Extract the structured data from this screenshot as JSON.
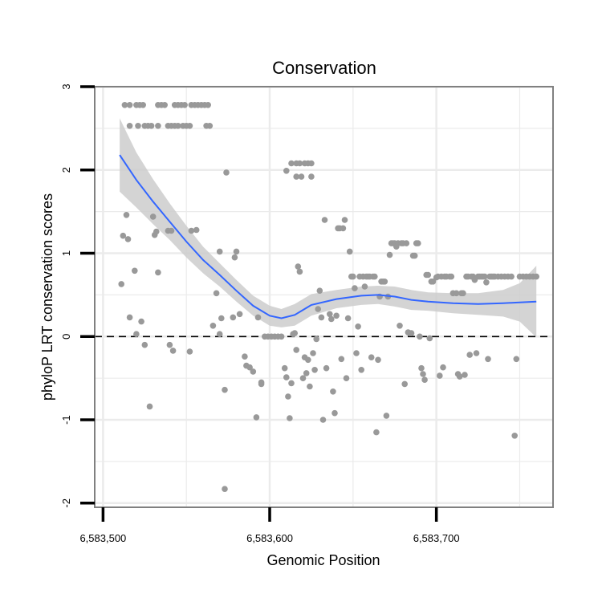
{
  "chart_data": {
    "type": "scatter",
    "title": "Conservation",
    "xlabel": "Genomic Position",
    "ylabel": "phyloP LRT conservation scores",
    "xlim": [
      6583495,
      6583770
    ],
    "ylim": [
      -2.05,
      3.0
    ],
    "x_ticks": [
      6583500,
      6583600,
      6583700
    ],
    "x_tick_labels": [
      "6,583,500",
      "6,583,600",
      "6,583,700"
    ],
    "y_ticks": [
      -2,
      -1,
      0,
      1,
      2,
      3
    ],
    "y_tick_labels": [
      "-2",
      "-1",
      "0",
      "1",
      "2",
      "3"
    ],
    "x_minor_ticks": [
      6583550,
      6583650,
      6583750
    ],
    "y_minor_ticks": [
      -1.5,
      -0.5,
      0.5,
      1.5,
      2.5
    ],
    "grid": true,
    "reference_line": {
      "y": 0,
      "style": "dashed"
    },
    "colors": {
      "points": "#999999",
      "smooth": "#3366FF",
      "band": "#cccccc",
      "panel_border": "#808080",
      "grid": "#ebebeb"
    },
    "series": [
      {
        "kind": "points",
        "points": [
          [
            6583513,
            2.78
          ],
          [
            6583516,
            2.78
          ],
          [
            6583520,
            2.78
          ],
          [
            6583522,
            2.78
          ],
          [
            6583524,
            2.78
          ],
          [
            6583533,
            2.78
          ],
          [
            6583535,
            2.78
          ],
          [
            6583537,
            2.78
          ],
          [
            6583543,
            2.78
          ],
          [
            6583545,
            2.78
          ],
          [
            6583547,
            2.78
          ],
          [
            6583549,
            2.78
          ],
          [
            6583553,
            2.78
          ],
          [
            6583555,
            2.78
          ],
          [
            6583557,
            2.78
          ],
          [
            6583559,
            2.78
          ],
          [
            6583561,
            2.78
          ],
          [
            6583563,
            2.78
          ],
          [
            6583516,
            2.53
          ],
          [
            6583521,
            2.53
          ],
          [
            6583525,
            2.53
          ],
          [
            6583527,
            2.53
          ],
          [
            6583529,
            2.53
          ],
          [
            6583533,
            2.53
          ],
          [
            6583539,
            2.53
          ],
          [
            6583541,
            2.53
          ],
          [
            6583543,
            2.53
          ],
          [
            6583545,
            2.53
          ],
          [
            6583548,
            2.53
          ],
          [
            6583550,
            2.53
          ],
          [
            6583552,
            2.53
          ],
          [
            6583562,
            2.53
          ],
          [
            6583564,
            2.53
          ],
          [
            6583574,
            1.97
          ],
          [
            6583610,
            1.99
          ],
          [
            6583613,
            2.08
          ],
          [
            6583616,
            2.08
          ],
          [
            6583618,
            2.08
          ],
          [
            6583621,
            2.08
          ],
          [
            6583623,
            2.08
          ],
          [
            6583625,
            2.08
          ],
          [
            6583616,
            1.92
          ],
          [
            6583619,
            1.92
          ],
          [
            6583625,
            1.92
          ],
          [
            6583512,
            1.21
          ],
          [
            6583514,
            1.46
          ],
          [
            6583515,
            1.17
          ],
          [
            6583530,
            1.44
          ],
          [
            6583531,
            1.22
          ],
          [
            6583532,
            1.26
          ],
          [
            6583539,
            1.27
          ],
          [
            6583541,
            1.27
          ],
          [
            6583553,
            1.27
          ],
          [
            6583556,
            1.28
          ],
          [
            6583570,
            1.02
          ],
          [
            6583579,
            0.95
          ],
          [
            6583580,
            1.02
          ],
          [
            6583511,
            0.63
          ],
          [
            6583516,
            0.23
          ],
          [
            6583519,
            0.79
          ],
          [
            6583520,
            0.03
          ],
          [
            6583523,
            0.18
          ],
          [
            6583525,
            -0.1
          ],
          [
            6583528,
            -0.84
          ],
          [
            6583533,
            0.77
          ],
          [
            6583540,
            -0.1
          ],
          [
            6583542,
            -0.17
          ],
          [
            6583552,
            -0.18
          ],
          [
            6583566,
            0.13
          ],
          [
            6583568,
            0.52
          ],
          [
            6583570,
            0.03
          ],
          [
            6583571,
            0.22
          ],
          [
            6583573,
            -0.64
          ],
          [
            6583573,
            -1.83
          ],
          [
            6583578,
            0.23
          ],
          [
            6583582,
            0.27
          ],
          [
            6583585,
            -0.24
          ],
          [
            6583586,
            -0.35
          ],
          [
            6583588,
            -0.37
          ],
          [
            6583590,
            -0.42
          ],
          [
            6583592,
            -0.97
          ],
          [
            6583593,
            0.23
          ],
          [
            6583595,
            -0.57
          ],
          [
            6583597,
            0.0
          ],
          [
            6583599,
            0.0
          ],
          [
            6583601,
            0.0
          ],
          [
            6583603,
            0.0
          ],
          [
            6583605,
            0.0
          ],
          [
            6583607,
            0.0
          ],
          [
            6583595,
            -0.55
          ],
          [
            6583609,
            -0.38
          ],
          [
            6583610,
            -0.49
          ],
          [
            6583611,
            -0.72
          ],
          [
            6583612,
            -0.98
          ],
          [
            6583613,
            -0.56
          ],
          [
            6583614,
            0.03
          ],
          [
            6583615,
            0.04
          ],
          [
            6583616,
            -0.16
          ],
          [
            6583617,
            0.84
          ],
          [
            6583618,
            0.78
          ],
          [
            6583620,
            -0.5
          ],
          [
            6583621,
            -0.25
          ],
          [
            6583622,
            -0.44
          ],
          [
            6583623,
            -0.28
          ],
          [
            6583624,
            -0.6
          ],
          [
            6583626,
            -0.2
          ],
          [
            6583627,
            -0.4
          ],
          [
            6583628,
            -0.03
          ],
          [
            6583629,
            0.33
          ],
          [
            6583630,
            0.55
          ],
          [
            6583631,
            0.23
          ],
          [
            6583632,
            -1.0
          ],
          [
            6583633,
            1.4
          ],
          [
            6583634,
            -0.38
          ],
          [
            6583636,
            0.27
          ],
          [
            6583637,
            0.21
          ],
          [
            6583638,
            -0.66
          ],
          [
            6583639,
            -0.92
          ],
          [
            6583640,
            0.25
          ],
          [
            6583641,
            1.3
          ],
          [
            6583642,
            1.3
          ],
          [
            6583643,
            -0.27
          ],
          [
            6583644,
            1.3
          ],
          [
            6583645,
            1.4
          ],
          [
            6583646,
            -0.5
          ],
          [
            6583647,
            0.22
          ],
          [
            6583648,
            1.02
          ],
          [
            6583649,
            0.72
          ],
          [
            6583650,
            0.72
          ],
          [
            6583651,
            0.58
          ],
          [
            6583652,
            -0.2
          ],
          [
            6583653,
            0.12
          ],
          [
            6583654,
            0.72
          ],
          [
            6583655,
            -0.4
          ],
          [
            6583656,
            0.72
          ],
          [
            6583657,
            0.6
          ],
          [
            6583658,
            0.72
          ],
          [
            6583659,
            0.72
          ],
          [
            6583660,
            0.72
          ],
          [
            6583661,
            -0.25
          ],
          [
            6583662,
            0.72
          ],
          [
            6583663,
            0.72
          ],
          [
            6583664,
            -1.15
          ],
          [
            6583665,
            -0.28
          ],
          [
            6583666,
            0.48
          ],
          [
            6583667,
            0.66
          ],
          [
            6583668,
            0.66
          ],
          [
            6583669,
            0.66
          ],
          [
            6583670,
            -0.95
          ],
          [
            6583671,
            0.48
          ],
          [
            6583672,
            0.98
          ],
          [
            6583673,
            1.12
          ],
          [
            6583674,
            1.12
          ],
          [
            6583675,
            1.12
          ],
          [
            6583676,
            1.08
          ],
          [
            6583677,
            1.12
          ],
          [
            6583678,
            0.13
          ],
          [
            6583679,
            1.12
          ],
          [
            6583680,
            1.12
          ],
          [
            6583681,
            -0.57
          ],
          [
            6583682,
            1.12
          ],
          [
            6583683,
            0.05
          ],
          [
            6583684,
            0.04
          ],
          [
            6583685,
            0.04
          ],
          [
            6583686,
            0.97
          ],
          [
            6583687,
            0.97
          ],
          [
            6583688,
            1.12
          ],
          [
            6583689,
            1.12
          ],
          [
            6583690,
            0.0
          ],
          [
            6583691,
            -0.38
          ],
          [
            6583692,
            -0.45
          ],
          [
            6583693,
            -0.52
          ],
          [
            6583694,
            0.74
          ],
          [
            6583695,
            0.74
          ],
          [
            6583696,
            -0.02
          ],
          [
            6583697,
            0.66
          ],
          [
            6583698,
            0.66
          ],
          [
            6583700,
            0.71
          ],
          [
            6583701,
            0.72
          ],
          [
            6583702,
            -0.47
          ],
          [
            6583703,
            0.72
          ],
          [
            6583704,
            -0.37
          ],
          [
            6583705,
            0.72
          ],
          [
            6583706,
            0.72
          ],
          [
            6583708,
            0.72
          ],
          [
            6583709,
            0.72
          ],
          [
            6583710,
            0.52
          ],
          [
            6583712,
            0.52
          ],
          [
            6583713,
            -0.45
          ],
          [
            6583714,
            -0.48
          ],
          [
            6583715,
            0.52
          ],
          [
            6583716,
            0.52
          ],
          [
            6583717,
            -0.46
          ],
          [
            6583718,
            0.72
          ],
          [
            6583719,
            0.72
          ],
          [
            6583720,
            -0.22
          ],
          [
            6583721,
            0.72
          ],
          [
            6583722,
            0.72
          ],
          [
            6583723,
            0.68
          ],
          [
            6583724,
            -0.2
          ],
          [
            6583725,
            0.72
          ],
          [
            6583726,
            0.72
          ],
          [
            6583727,
            0.72
          ],
          [
            6583728,
            0.72
          ],
          [
            6583729,
            0.72
          ],
          [
            6583730,
            0.65
          ],
          [
            6583731,
            -0.27
          ],
          [
            6583732,
            0.72
          ],
          [
            6583733,
            0.72
          ],
          [
            6583734,
            0.72
          ],
          [
            6583735,
            0.72
          ],
          [
            6583737,
            0.72
          ],
          [
            6583739,
            0.72
          ],
          [
            6583741,
            0.72
          ],
          [
            6583743,
            0.72
          ],
          [
            6583745,
            0.72
          ],
          [
            6583747,
            -1.19
          ],
          [
            6583748,
            -0.27
          ],
          [
            6583750,
            0.72
          ],
          [
            6583752,
            0.72
          ],
          [
            6583754,
            0.72
          ],
          [
            6583756,
            0.72
          ],
          [
            6583758,
            0.72
          ],
          [
            6583760,
            0.72
          ]
        ]
      },
      {
        "kind": "smooth",
        "points": [
          [
            6583510,
            2.18
          ],
          [
            6583520,
            1.88
          ],
          [
            6583530,
            1.62
          ],
          [
            6583540,
            1.38
          ],
          [
            6583550,
            1.14
          ],
          [
            6583560,
            0.92
          ],
          [
            6583570,
            0.74
          ],
          [
            6583580,
            0.55
          ],
          [
            6583590,
            0.37
          ],
          [
            6583600,
            0.25
          ],
          [
            6583607,
            0.22
          ],
          [
            6583615,
            0.26
          ],
          [
            6583625,
            0.38
          ],
          [
            6583640,
            0.45
          ],
          [
            6583655,
            0.49
          ],
          [
            6583665,
            0.5
          ],
          [
            6583675,
            0.48
          ],
          [
            6583685,
            0.44
          ],
          [
            6583695,
            0.42
          ],
          [
            6583710,
            0.4
          ],
          [
            6583725,
            0.39
          ],
          [
            6583740,
            0.4
          ],
          [
            6583750,
            0.41
          ],
          [
            6583760,
            0.42
          ]
        ],
        "band_upper": [
          [
            6583510,
            2.62
          ],
          [
            6583520,
            2.21
          ],
          [
            6583530,
            1.89
          ],
          [
            6583540,
            1.6
          ],
          [
            6583550,
            1.33
          ],
          [
            6583560,
            1.08
          ],
          [
            6583570,
            0.88
          ],
          [
            6583580,
            0.68
          ],
          [
            6583590,
            0.49
          ],
          [
            6583600,
            0.37
          ],
          [
            6583607,
            0.33
          ],
          [
            6583615,
            0.39
          ],
          [
            6583625,
            0.51
          ],
          [
            6583640,
            0.56
          ],
          [
            6583655,
            0.6
          ],
          [
            6583665,
            0.61
          ],
          [
            6583675,
            0.6
          ],
          [
            6583685,
            0.56
          ],
          [
            6583695,
            0.53
          ],
          [
            6583710,
            0.52
          ],
          [
            6583725,
            0.52
          ],
          [
            6583740,
            0.56
          ],
          [
            6583750,
            0.64
          ],
          [
            6583760,
            0.85
          ]
        ],
        "band_lower": [
          [
            6583510,
            1.74
          ],
          [
            6583520,
            1.55
          ],
          [
            6583530,
            1.35
          ],
          [
            6583540,
            1.16
          ],
          [
            6583550,
            0.95
          ],
          [
            6583560,
            0.76
          ],
          [
            6583570,
            0.6
          ],
          [
            6583580,
            0.42
          ],
          [
            6583590,
            0.25
          ],
          [
            6583600,
            0.13
          ],
          [
            6583607,
            0.11
          ],
          [
            6583615,
            0.13
          ],
          [
            6583625,
            0.25
          ],
          [
            6583640,
            0.34
          ],
          [
            6583655,
            0.38
          ],
          [
            6583665,
            0.39
          ],
          [
            6583675,
            0.36
          ],
          [
            6583685,
            0.32
          ],
          [
            6583695,
            0.31
          ],
          [
            6583710,
            0.28
          ],
          [
            6583725,
            0.26
          ],
          [
            6583740,
            0.24
          ],
          [
            6583750,
            0.18
          ],
          [
            6583760,
            -0.01
          ]
        ]
      }
    ]
  }
}
